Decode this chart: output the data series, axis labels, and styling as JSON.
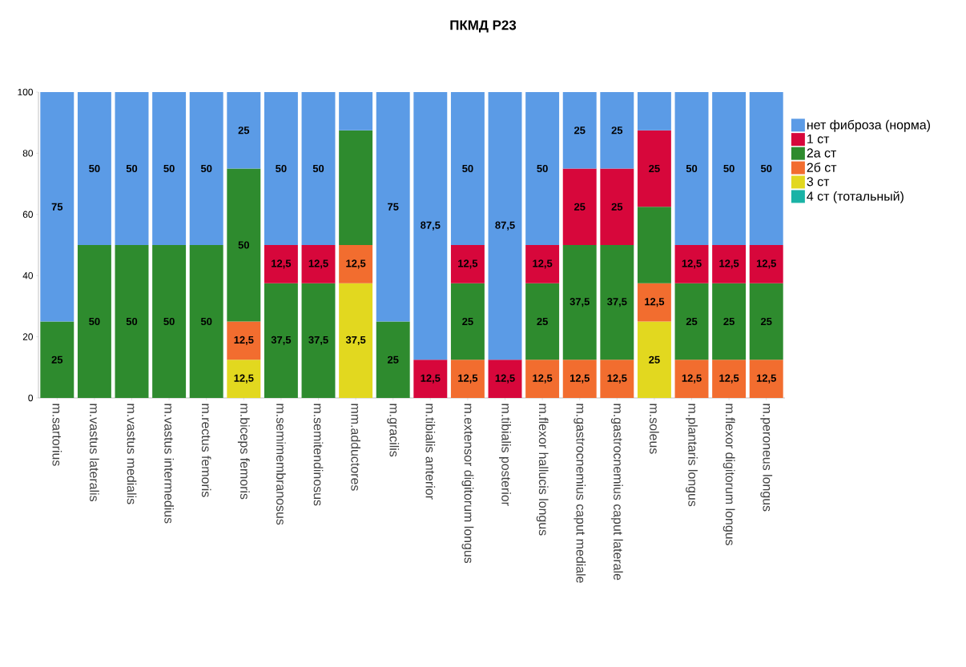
{
  "chart_data": {
    "type": "bar",
    "title": "ПКМД  Р23",
    "stacked": true,
    "legend": "right",
    "grid": false,
    "categories": [
      "m.sartorius",
      "m.vastus lateralis",
      "m.vastus medialis",
      "m.vastus intermedius",
      "m.rectus femoris",
      "m.biceps femoris",
      "m.semimembranosus",
      "m.semitendinosus",
      "mm.adductores",
      "m.gracilis",
      "m.tibialis anterior",
      "m.extensor digitorum longus",
      "m.tibialis posterior",
      "m.flexor hallucis longus",
      "m.gastrocnemius caput mediale",
      "m.gastrocnemius caput laterale",
      "m.soleus",
      "m.plantaris longus",
      "m.flexor digitorum longus",
      "m.peroneus longus"
    ],
    "ylim": [
      0,
      100
    ],
    "yticks": [
      0,
      20,
      40,
      60,
      80,
      100
    ],
    "series": [
      {
        "name": "4 ст (тотальный)",
        "color": "#1ab3a6",
        "values": [
          0,
          0,
          0,
          0,
          0,
          0,
          0,
          0,
          0,
          0,
          0,
          0,
          0,
          0,
          0,
          0,
          0,
          0,
          0,
          0
        ],
        "value_labels": [
          null,
          null,
          null,
          null,
          null,
          null,
          null,
          null,
          null,
          null,
          null,
          null,
          null,
          null,
          null,
          null,
          null,
          null,
          null,
          null
        ]
      },
      {
        "name": "3 ст",
        "color": "#e2d81f",
        "values": [
          0,
          0,
          0,
          0,
          0,
          12.5,
          0,
          0,
          37.5,
          0,
          0,
          0,
          0,
          0,
          0,
          0,
          25,
          0,
          0,
          0
        ],
        "value_labels": [
          null,
          null,
          null,
          null,
          null,
          "12,5",
          null,
          null,
          "37,5",
          null,
          null,
          null,
          null,
          null,
          null,
          null,
          "25",
          null,
          null,
          null
        ]
      },
      {
        "name": "2б ст",
        "color": "#f26d2f",
        "values": [
          0,
          0,
          0,
          0,
          0,
          12.5,
          0,
          0,
          12.5,
          0,
          0,
          12.5,
          0,
          12.5,
          12.5,
          12.5,
          12.5,
          12.5,
          12.5,
          12.5
        ],
        "value_labels": [
          null,
          null,
          null,
          null,
          null,
          "12,5",
          null,
          null,
          "12,5",
          null,
          null,
          "12,5",
          null,
          "12,5",
          "12,5",
          "12,5",
          "12,5",
          "12,5",
          "12,5",
          "12,5"
        ]
      },
      {
        "name": "2а ст",
        "color": "#2e8b2e",
        "values": [
          25,
          50,
          50,
          50,
          50,
          50,
          37.5,
          37.5,
          37.5,
          25,
          0,
          25,
          0,
          25,
          37.5,
          37.5,
          25,
          25,
          25,
          25
        ],
        "value_labels": [
          "25",
          "50",
          "50",
          "50",
          "50",
          "50",
          "37,5",
          "37,5",
          null,
          "25",
          null,
          "25",
          null,
          "25",
          "37,5",
          "37,5",
          null,
          "25",
          "25",
          "25"
        ]
      },
      {
        "name": "1 ст",
        "color": "#d7073b",
        "values": [
          0,
          0,
          0,
          0,
          0,
          0,
          12.5,
          12.5,
          0,
          0,
          12.5,
          12.5,
          12.5,
          12.5,
          25,
          25,
          25,
          12.5,
          12.5,
          12.5
        ],
        "value_labels": [
          null,
          null,
          null,
          null,
          null,
          null,
          "12,5",
          "12,5",
          null,
          null,
          "12,5",
          "12,5",
          "12,5",
          "12,5",
          "25",
          "25",
          "25",
          "12,5",
          "12,5",
          "12,5"
        ]
      },
      {
        "name": "нет фиброза (норма)",
        "color": "#5b9be6",
        "values": [
          75,
          50,
          50,
          50,
          50,
          25,
          50,
          50,
          12.5,
          75,
          87.5,
          50,
          87.5,
          50,
          25,
          25,
          12.5,
          50,
          50,
          50
        ],
        "value_labels": [
          "75",
          "50",
          "50",
          "50",
          "50",
          "25",
          "50",
          "50",
          null,
          "75",
          "87,5",
          "50",
          "87,5",
          "50",
          "25",
          "25",
          null,
          "50",
          "50",
          "50"
        ]
      }
    ]
  }
}
